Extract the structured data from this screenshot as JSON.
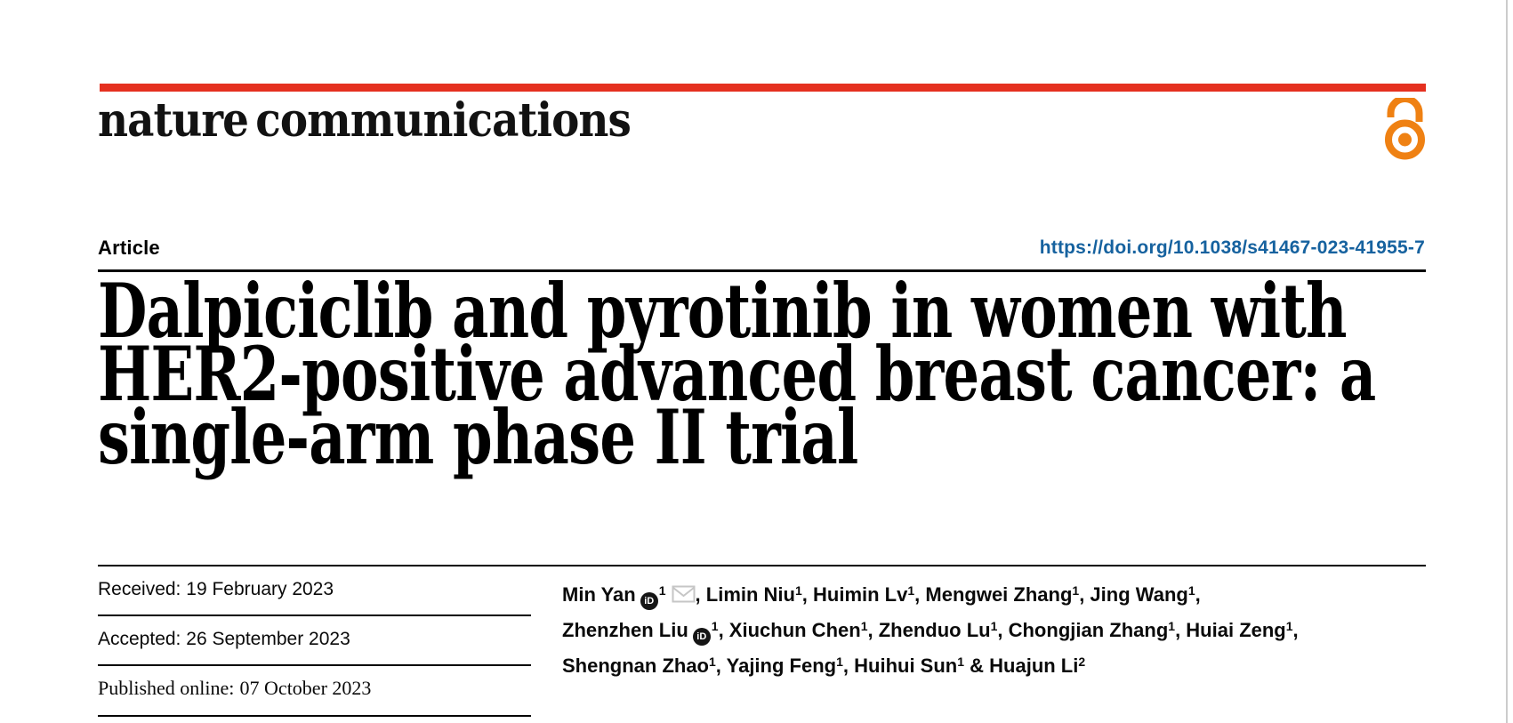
{
  "journal": {
    "logo_text": "nature communications",
    "brand_bar_color": "#e5301f",
    "open_access_icon_color": "#ef8113"
  },
  "article": {
    "type_label": "Article",
    "doi_link": "https://doi.org/10.1038/s41467-023-41955-7",
    "doi_color": "#16629f",
    "title_lines": [
      "Dalpiciclib and pyrotinib in women with",
      "HER2-positive advanced breast cancer: a",
      "single-arm phase II trial"
    ]
  },
  "history": {
    "rows": [
      {
        "label": "Received:",
        "date": "19 February 2023"
      },
      {
        "label": "Accepted:",
        "date": "26 September 2023"
      },
      {
        "label": "Published online:",
        "date": "07 October 2023"
      }
    ]
  },
  "authors": {
    "orcid_icon_text": "iD",
    "lines": [
      [
        {
          "name": "Min Yan",
          "orcid": true,
          "sup": "1",
          "email": true,
          "sep": ", "
        },
        {
          "name": "Limin Niu",
          "sup": "1",
          "sep": ", "
        },
        {
          "name": "Huimin Lv",
          "sup": "1",
          "sep": ", "
        },
        {
          "name": "Mengwei Zhang",
          "sup": "1",
          "sep": ", "
        },
        {
          "name": "Jing Wang",
          "sup": "1",
          "sep": ","
        }
      ],
      [
        {
          "name": "Zhenzhen Liu",
          "orcid": true,
          "sup": "1",
          "sep": ", "
        },
        {
          "name": "Xiuchun Chen",
          "sup": "1",
          "sep": ", "
        },
        {
          "name": "Zhenduo Lu",
          "sup": "1",
          "sep": ", "
        },
        {
          "name": "Chongjian Zhang",
          "sup": "1",
          "sep": ", "
        },
        {
          "name": "Huiai Zeng",
          "sup": "1",
          "sep": ","
        }
      ],
      [
        {
          "name": "Shengnan Zhao",
          "sup": "1",
          "sep": ", "
        },
        {
          "name": "Yajing Feng",
          "sup": "1",
          "sep": ", "
        },
        {
          "name": "Huihui Sun",
          "sup": "1",
          "sep": " & "
        },
        {
          "name": "Huajun Li",
          "sup": "2",
          "sep": ""
        }
      ]
    ]
  }
}
